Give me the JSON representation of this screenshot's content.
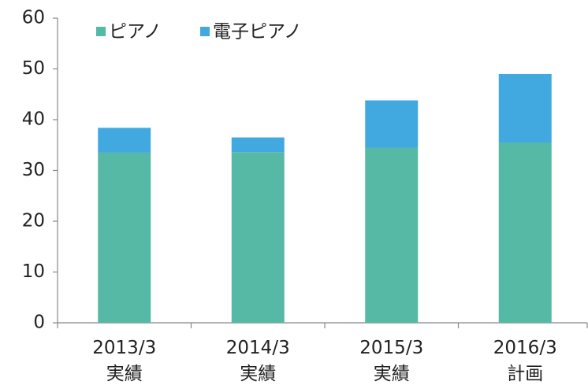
{
  "chart_data": {
    "type": "stacked_bar",
    "categories": [
      "2013/3\n実績",
      "2014/3\n実績",
      "2015/3\n実績",
      "2016/3\n計画"
    ],
    "series": [
      {
        "name": "ピアノ",
        "color": "#55b9a5",
        "values": [
          33.5,
          33.6,
          34.5,
          35.5
        ]
      },
      {
        "name": "電子ピアノ",
        "color": "#41a9e0",
        "values": [
          4.9,
          2.9,
          9.3,
          13.5
        ]
      }
    ],
    "ylim": [
      0,
      60
    ],
    "yticks": [
      0,
      10,
      20,
      30,
      40,
      50,
      60
    ],
    "grid": false,
    "legend": "top"
  }
}
